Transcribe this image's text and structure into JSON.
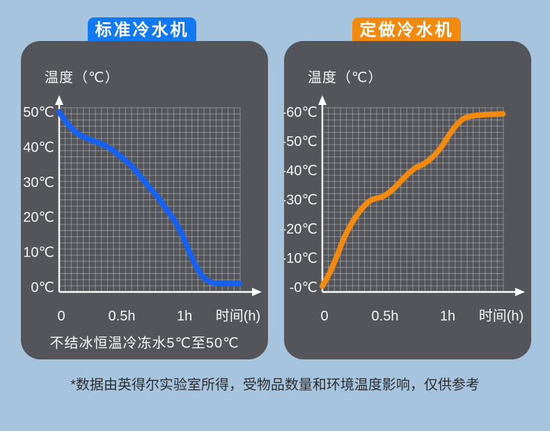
{
  "page": {
    "background_color": "#a6c4de",
    "footnote": "*数据由英得尔实验室所得，受物品数量和环境温度影响，仅供参考"
  },
  "panels": [
    {
      "tab_label": "标准冷水机",
      "tab_color": "#1179f2",
      "axis_title": "温度（℃）",
      "caption": "不结冰恒温冷冻水5℃至50℃"
    },
    {
      "tab_label": "定做冷水机",
      "tab_color": "#f18a0e",
      "axis_title": "温度（℃）",
      "caption": ""
    }
  ],
  "chart_data": [
    {
      "type": "line",
      "title": "标准冷水机",
      "xlabel": "时间(h)",
      "ylabel": "温度（℃）",
      "grid": true,
      "x_tick_labels": [
        "0",
        "0.5h",
        "1h"
      ],
      "x_tick_hours": [
        0,
        0.5,
        1
      ],
      "xlim_hours": [
        0,
        1.44
      ],
      "y_tick_labels": [
        "50℃",
        "40℃",
        "30℃",
        "20℃",
        "10℃",
        "0℃"
      ],
      "y_tick_values": [
        50,
        40,
        30,
        20,
        10,
        0
      ],
      "ylim": [
        0,
        50
      ],
      "line_color": "#1661ef",
      "points": [
        [
          0,
          50
        ],
        [
          0.07,
          46.5
        ],
        [
          0.14,
          44
        ],
        [
          0.22,
          42.5
        ],
        [
          0.29,
          41.5
        ],
        [
          0.36,
          40.5
        ],
        [
          0.43,
          39
        ],
        [
          0.5,
          37
        ],
        [
          0.58,
          34.5
        ],
        [
          0.65,
          31.5
        ],
        [
          0.72,
          28.5
        ],
        [
          0.79,
          25.5
        ],
        [
          0.86,
          22
        ],
        [
          0.92,
          19
        ],
        [
          0.98,
          15
        ],
        [
          1.04,
          10
        ],
        [
          1.1,
          5.5
        ],
        [
          1.16,
          2.5
        ],
        [
          1.22,
          1.3
        ],
        [
          1.3,
          1
        ],
        [
          1.44,
          1
        ]
      ]
    },
    {
      "type": "line",
      "title": "定做冷水机",
      "xlabel": "时间(h)",
      "ylabel": "温度（℃）",
      "grid": true,
      "x_tick_labels": [
        "0",
        "0.5h",
        "1h"
      ],
      "x_tick_hours": [
        0,
        0.5,
        1
      ],
      "xlim_hours": [
        0,
        1.44
      ],
      "y_tick_labels": [
        "-60℃",
        "-50℃",
        "-40℃",
        "-30℃",
        "-20℃",
        "-10℃",
        "-0℃"
      ],
      "y_tick_values": [
        -60,
        -50,
        -40,
        -30,
        -20,
        -10,
        0
      ],
      "ylim": [
        0,
        -60
      ],
      "line_color": "#f18a0e",
      "points": [
        [
          0,
          -0.3
        ],
        [
          0.06,
          -5
        ],
        [
          0.12,
          -11
        ],
        [
          0.17,
          -16.5
        ],
        [
          0.23,
          -21.5
        ],
        [
          0.29,
          -25.5
        ],
        [
          0.35,
          -28.5
        ],
        [
          0.4,
          -30
        ],
        [
          0.48,
          -31
        ],
        [
          0.55,
          -33
        ],
        [
          0.62,
          -36
        ],
        [
          0.69,
          -39
        ],
        [
          0.75,
          -41
        ],
        [
          0.82,
          -42.5
        ],
        [
          0.89,
          -45
        ],
        [
          0.95,
          -48
        ],
        [
          1.01,
          -52
        ],
        [
          1.07,
          -55.5
        ],
        [
          1.12,
          -57.5
        ],
        [
          1.18,
          -58.5
        ],
        [
          1.27,
          -59
        ],
        [
          1.44,
          -59.3
        ]
      ]
    }
  ]
}
